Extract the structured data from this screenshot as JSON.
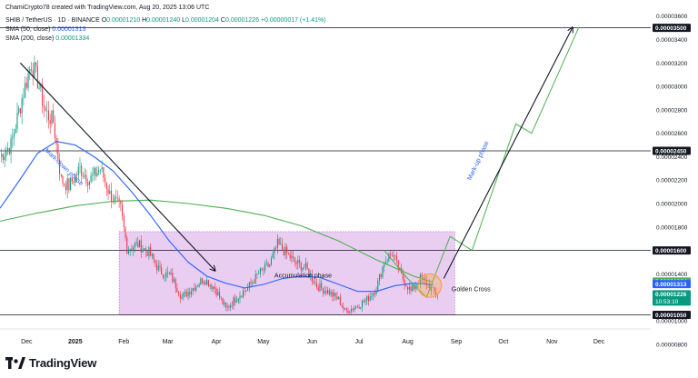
{
  "header": {
    "credit": "ChamiCrypto78 created with TradingView.com, Aug 20, 2025 13:06 UTC",
    "symbol": "SHIB / TetherUS · 1D · BINANCE",
    "ohlc": [
      {
        "k": "O",
        "v": "0.00001210"
      },
      {
        "k": "H",
        "v": "0.00001240"
      },
      {
        "k": "L",
        "v": "0.00001204"
      },
      {
        "k": "C",
        "v": "0.00001226"
      }
    ],
    "change": "+0.00000017 (+1.41%)",
    "sma50_label": "SMA (50, close)",
    "sma50_value": "0.00001313",
    "sma200_label": "SMA (200, close)",
    "sma200_value": "0.00001334"
  },
  "logo": {
    "text": "TradingView"
  },
  "colors": {
    "up": "#089981",
    "down": "#f23645",
    "sma50": "#2962ff",
    "sma200": "#4caf50",
    "zone": "#d8a6e8",
    "zone_border": "#b05bd1",
    "projection": "#4caf50",
    "arrow": "#131722",
    "circle": "#f7a340"
  },
  "chart_data": {
    "type": "candlestick",
    "title": "",
    "x_ticks": [
      {
        "label": "Dec",
        "date": "2024-12-01"
      },
      {
        "label": "2025",
        "date": "2025-01-01"
      },
      {
        "label": "Feb",
        "date": "2025-02-01"
      },
      {
        "label": "Mar",
        "date": "2025-03-01"
      },
      {
        "label": "Apr",
        "date": "2025-04-01"
      },
      {
        "label": "May",
        "date": "2025-05-01"
      },
      {
        "label": "Jun",
        "date": "2025-06-01"
      },
      {
        "label": "Jul",
        "date": "2025-07-01"
      },
      {
        "label": "Aug",
        "date": "2025-08-01"
      },
      {
        "label": "Sep",
        "date": "2025-09-01"
      },
      {
        "label": "Oct",
        "date": "2025-10-01"
      },
      {
        "label": "Nov",
        "date": "2025-11-01"
      },
      {
        "label": "Dec",
        "date": "2025-12-01"
      }
    ],
    "x_range": [
      "2024-11-14",
      "2026-01-03"
    ],
    "y_range": [
      9.3e-06,
      3.66e-05
    ],
    "y_ticks": [
      "0.00000800",
      "0.00001000",
      "0.00001200",
      "0.00001400",
      "0.00001600",
      "0.00001800",
      "0.00002000",
      "0.00002200",
      "0.00002400",
      "0.00002600",
      "0.00002800",
      "0.00003000",
      "0.00003200",
      "0.00003400",
      "0.00003600"
    ],
    "price_badges": [
      {
        "label": "0.00003500",
        "value": 3.5e-05,
        "style": "level"
      },
      {
        "label": "0.00002450",
        "value": 2.45e-05,
        "style": "level"
      },
      {
        "label": "0.00001600",
        "value": 1.6e-05,
        "style": "level"
      },
      {
        "label": "0.00001334",
        "value": 1.334e-05,
        "style": "sma200"
      },
      {
        "label": "0.00001313",
        "value": 1.313e-05,
        "style": "sma50"
      },
      {
        "label": "0.00001226",
        "value": 1.226e-05,
        "style": "last",
        "countdown": "10:53:10"
      },
      {
        "label": "0.00001050",
        "value": 1.05e-05,
        "style": "level"
      }
    ],
    "horizontal_levels": [
      3.5e-05,
      2.45e-05,
      1.6e-05,
      1.05e-05
    ],
    "accumulation_zone": {
      "from": "2025-01-29",
      "to": "2025-08-31",
      "low": 1.05e-05,
      "high": 1.76e-05
    },
    "annotations": [
      {
        "text": "Mark-down phase",
        "date": "2024-12-24",
        "value": 2.3e-05,
        "angle": 44
      },
      {
        "text": "Accumulation phase",
        "date": "2025-05-08",
        "value": 1.37e-05,
        "angle": 0
      },
      {
        "text": "Golden Cross",
        "date": "2025-08-29",
        "value": 1.25e-05,
        "angle": 0
      },
      {
        "text": "Mark-up phase",
        "date": "2025-09-16",
        "value": 2.36e-05,
        "angle": -65
      }
    ],
    "markdown_arrow": {
      "from": {
        "date": "2024-11-27",
        "value": 3.2e-05
      },
      "to": {
        "date": "2025-03-31",
        "value": 1.43e-05
      }
    },
    "markup_arrow": {
      "from": {
        "date": "2025-08-24",
        "value": 1.36e-05
      },
      "to": {
        "date": "2025-11-14",
        "value": 3.5e-05
      }
    },
    "projection_path": [
      {
        "date": "2025-07-17",
        "value": 1.6e-05
      },
      {
        "date": "2025-08-01",
        "value": 1.36e-05
      },
      {
        "date": "2025-08-13",
        "value": 1.2e-05
      },
      {
        "date": "2025-08-28",
        "value": 1.72e-05
      },
      {
        "date": "2025-09-11",
        "value": 1.6e-05
      },
      {
        "date": "2025-10-09",
        "value": 2.68e-05
      },
      {
        "date": "2025-10-19",
        "value": 2.6e-05
      },
      {
        "date": "2025-11-18",
        "value": 3.5e-05
      }
    ],
    "golden_cross_circle": {
      "date": "2025-08-15",
      "value": 1.3e-05
    },
    "sma50": [
      {
        "date": "2024-11-14",
        "value": 1.96e-05
      },
      {
        "date": "2024-11-26",
        "value": 2.19e-05
      },
      {
        "date": "2024-12-08",
        "value": 2.43e-05
      },
      {
        "date": "2024-12-20",
        "value": 2.53e-05
      },
      {
        "date": "2025-01-01",
        "value": 2.5e-05
      },
      {
        "date": "2025-01-13",
        "value": 2.4e-05
      },
      {
        "date": "2025-01-25",
        "value": 2.28e-05
      },
      {
        "date": "2025-02-06",
        "value": 2.1e-05
      },
      {
        "date": "2025-02-18",
        "value": 1.9e-05
      },
      {
        "date": "2025-03-02",
        "value": 1.68e-05
      },
      {
        "date": "2025-03-14",
        "value": 1.5e-05
      },
      {
        "date": "2025-03-26",
        "value": 1.38e-05
      },
      {
        "date": "2025-04-07",
        "value": 1.32e-05
      },
      {
        "date": "2025-04-19",
        "value": 1.28e-05
      },
      {
        "date": "2025-05-01",
        "value": 1.31e-05
      },
      {
        "date": "2025-05-13",
        "value": 1.36e-05
      },
      {
        "date": "2025-05-25",
        "value": 1.38e-05
      },
      {
        "date": "2025-06-06",
        "value": 1.37e-05
      },
      {
        "date": "2025-06-18",
        "value": 1.31e-05
      },
      {
        "date": "2025-06-30",
        "value": 1.25e-05
      },
      {
        "date": "2025-07-12",
        "value": 1.25e-05
      },
      {
        "date": "2025-07-24",
        "value": 1.3e-05
      },
      {
        "date": "2025-08-05",
        "value": 1.32e-05
      },
      {
        "date": "2025-08-17",
        "value": 1.31e-05
      }
    ],
    "sma200": [
      {
        "date": "2024-11-14",
        "value": 1.85e-05
      },
      {
        "date": "2024-12-08",
        "value": 1.92e-05
      },
      {
        "date": "2025-01-01",
        "value": 1.98e-05
      },
      {
        "date": "2025-01-25",
        "value": 2.02e-05
      },
      {
        "date": "2025-02-18",
        "value": 2.03e-05
      },
      {
        "date": "2025-03-14",
        "value": 2e-05
      },
      {
        "date": "2025-04-07",
        "value": 1.96e-05
      },
      {
        "date": "2025-05-01",
        "value": 1.9e-05
      },
      {
        "date": "2025-05-25",
        "value": 1.81e-05
      },
      {
        "date": "2025-06-18",
        "value": 1.68e-05
      },
      {
        "date": "2025-07-12",
        "value": 1.52e-05
      },
      {
        "date": "2025-08-05",
        "value": 1.38e-05
      },
      {
        "date": "2025-08-17",
        "value": 1.33e-05
      }
    ],
    "close_path": [
      {
        "date": "2024-11-14",
        "value": 2.4e-05
      },
      {
        "date": "2024-11-21",
        "value": 2.5e-05
      },
      {
        "date": "2024-11-28",
        "value": 2.9e-05
      },
      {
        "date": "2024-12-04",
        "value": 3.2e-05
      },
      {
        "date": "2024-12-08",
        "value": 3.05e-05
      },
      {
        "date": "2024-12-13",
        "value": 2.78e-05
      },
      {
        "date": "2024-12-18",
        "value": 2.7e-05
      },
      {
        "date": "2024-12-23",
        "value": 2.2e-05
      },
      {
        "date": "2024-12-28",
        "value": 2.15e-05
      },
      {
        "date": "2025-01-04",
        "value": 2.3e-05
      },
      {
        "date": "2025-01-10",
        "value": 2.2e-05
      },
      {
        "date": "2025-01-17",
        "value": 2.3e-05
      },
      {
        "date": "2025-01-23",
        "value": 2.08e-05
      },
      {
        "date": "2025-01-30",
        "value": 1.95e-05
      },
      {
        "date": "2025-02-03",
        "value": 1.62e-05
      },
      {
        "date": "2025-02-10",
        "value": 1.65e-05
      },
      {
        "date": "2025-02-17",
        "value": 1.58e-05
      },
      {
        "date": "2025-02-24",
        "value": 1.42e-05
      },
      {
        "date": "2025-03-03",
        "value": 1.38e-05
      },
      {
        "date": "2025-03-10",
        "value": 1.2e-05
      },
      {
        "date": "2025-03-17",
        "value": 1.28e-05
      },
      {
        "date": "2025-03-24",
        "value": 1.36e-05
      },
      {
        "date": "2025-03-31",
        "value": 1.28e-05
      },
      {
        "date": "2025-04-07",
        "value": 1.1e-05
      },
      {
        "date": "2025-04-14",
        "value": 1.2e-05
      },
      {
        "date": "2025-04-21",
        "value": 1.28e-05
      },
      {
        "date": "2025-04-28",
        "value": 1.4e-05
      },
      {
        "date": "2025-05-05",
        "value": 1.48e-05
      },
      {
        "date": "2025-05-10",
        "value": 1.65e-05
      },
      {
        "date": "2025-05-14",
        "value": 1.6e-05
      },
      {
        "date": "2025-05-21",
        "value": 1.5e-05
      },
      {
        "date": "2025-05-28",
        "value": 1.45e-05
      },
      {
        "date": "2025-06-04",
        "value": 1.3e-05
      },
      {
        "date": "2025-06-11",
        "value": 1.25e-05
      },
      {
        "date": "2025-06-18",
        "value": 1.18e-05
      },
      {
        "date": "2025-06-22",
        "value": 1.08e-05
      },
      {
        "date": "2025-06-29",
        "value": 1.12e-05
      },
      {
        "date": "2025-07-06",
        "value": 1.18e-05
      },
      {
        "date": "2025-07-12",
        "value": 1.28e-05
      },
      {
        "date": "2025-07-17",
        "value": 1.5e-05
      },
      {
        "date": "2025-07-22",
        "value": 1.58e-05
      },
      {
        "date": "2025-07-28",
        "value": 1.38e-05
      },
      {
        "date": "2025-08-03",
        "value": 1.25e-05
      },
      {
        "date": "2025-08-09",
        "value": 1.36e-05
      },
      {
        "date": "2025-08-13",
        "value": 1.32e-05
      },
      {
        "date": "2025-08-17",
        "value": 1.25e-05
      },
      {
        "date": "2025-08-20",
        "value": 1.226e-05
      }
    ]
  }
}
